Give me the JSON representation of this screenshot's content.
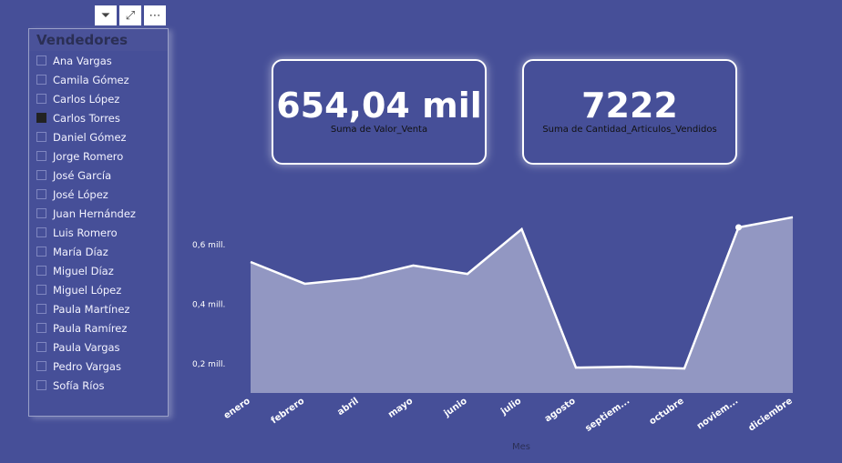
{
  "toolbar": {
    "filter": "filter-icon",
    "focus": "focus-mode-icon",
    "more": "more-options-icon"
  },
  "slicer": {
    "title": "Vendedores",
    "items": [
      {
        "label": "Ana Vargas",
        "checked": false
      },
      {
        "label": "Camila Gómez",
        "checked": false
      },
      {
        "label": "Carlos López",
        "checked": false
      },
      {
        "label": "Carlos Torres",
        "checked": true
      },
      {
        "label": "Daniel Gómez",
        "checked": false
      },
      {
        "label": "Jorge Romero",
        "checked": false
      },
      {
        "label": "José García",
        "checked": false
      },
      {
        "label": "José López",
        "checked": false
      },
      {
        "label": "Juan Hernández",
        "checked": false
      },
      {
        "label": "Luis Romero",
        "checked": false
      },
      {
        "label": "María Díaz",
        "checked": false
      },
      {
        "label": "Miguel Díaz",
        "checked": false
      },
      {
        "label": "Miguel López",
        "checked": false
      },
      {
        "label": "Paula Martínez",
        "checked": false
      },
      {
        "label": "Paula Ramírez",
        "checked": false
      },
      {
        "label": "Paula Vargas",
        "checked": false
      },
      {
        "label": "Pedro Vargas",
        "checked": false
      },
      {
        "label": "Sofía Ríos",
        "checked": false
      }
    ]
  },
  "cards": [
    {
      "value": "654,04 mil",
      "label": "Suma de Valor_Venta"
    },
    {
      "value": "7222",
      "label": "Suma de Cantidad_Articulos_Vendidos"
    }
  ],
  "chart_data": {
    "type": "area",
    "xlabel": "Mes",
    "ylabel": "",
    "categories": [
      "enero",
      "febrero",
      "abril",
      "mayo",
      "junio",
      "julio",
      "agosto",
      "septiem...",
      "octubre",
      "noviem...",
      "diciembre"
    ],
    "values": [
      0.539,
      0.466,
      0.484,
      0.527,
      0.499,
      0.649,
      0.185,
      0.188,
      0.182,
      0.655,
      0.689
    ],
    "yticks": [
      {
        "v": 0.2,
        "label": "0,2 mill."
      },
      {
        "v": 0.4,
        "label": "0,4 mill."
      },
      {
        "v": 0.6,
        "label": "0,6 mill."
      }
    ],
    "ylim": [
      0.1,
      0.72
    ],
    "highlight_index": 9,
    "fill": "#9297c2",
    "line": "#ffffff"
  }
}
